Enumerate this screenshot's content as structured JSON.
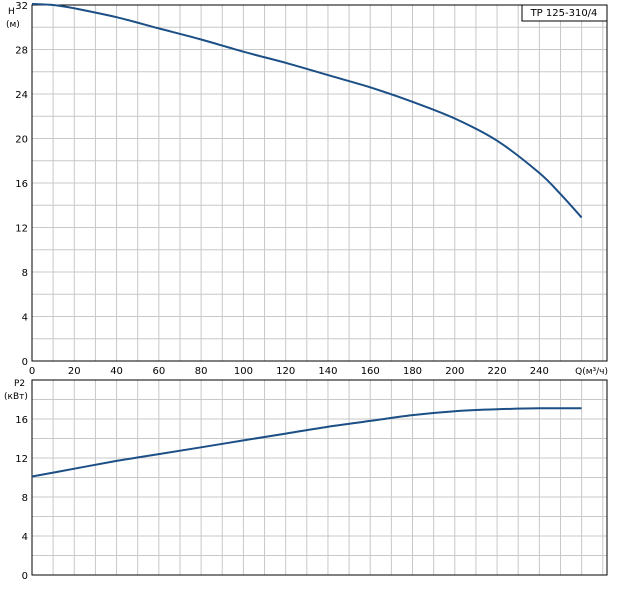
{
  "chart_data": [
    {
      "type": "line",
      "title": "",
      "model_label": "TP 125-310/4",
      "ylabel": "H",
      "yunit": "(м)",
      "xlabel": "Q(м³/ч)",
      "xlim": [
        0,
        272
      ],
      "ylim": [
        0,
        32
      ],
      "x_ticks": [
        0,
        20,
        40,
        60,
        80,
        100,
        120,
        140,
        160,
        180,
        200,
        220,
        240
      ],
      "y_ticks": [
        0,
        4,
        8,
        12,
        16,
        20,
        24,
        28,
        32
      ],
      "grid": true,
      "series": [
        {
          "color": "#1c4f86",
          "x": [
            0,
            10,
            20,
            40,
            60,
            80,
            100,
            120,
            140,
            160,
            180,
            200,
            220,
            240,
            250,
            260
          ],
          "y": [
            32.1,
            32.0,
            31.7,
            30.9,
            29.9,
            28.9,
            27.8,
            26.8,
            25.7,
            24.6,
            23.3,
            21.8,
            19.8,
            16.9,
            15.0,
            12.9
          ]
        }
      ]
    },
    {
      "type": "line",
      "title": "",
      "ylabel": "P2",
      "yunit": "(кВт)",
      "xlabel": "",
      "xlim": [
        0,
        272
      ],
      "ylim": [
        0,
        20
      ],
      "y_ticks": [
        0,
        4,
        8,
        12,
        16
      ],
      "grid": true,
      "series": [
        {
          "color": "#1c4f86",
          "x": [
            0,
            20,
            40,
            60,
            80,
            100,
            120,
            140,
            160,
            180,
            200,
            220,
            240,
            260
          ],
          "y": [
            10.1,
            10.9,
            11.7,
            12.4,
            13.1,
            13.8,
            14.5,
            15.2,
            15.8,
            16.4,
            16.8,
            17.0,
            17.1,
            17.1
          ]
        }
      ]
    }
  ]
}
